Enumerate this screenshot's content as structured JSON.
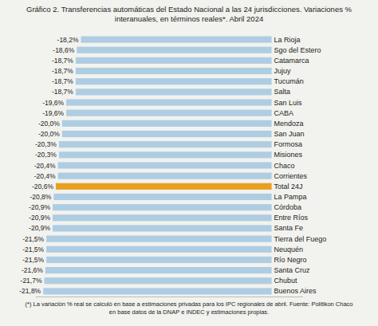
{
  "chart_data": {
    "type": "bar",
    "orientation": "horizontal",
    "title": "Gráfico 2. Transferencias automáticas del Estado Nacional a las 24 jurisdicciones. Variaciones %\ninteranuales, en términos reales*. Abril 2024",
    "annotations": [
      "(*) La variación % real se calculó en base a estimaciones privadas para los IPC regionales de abril. Fuente: Politikon Chaco\nen base datos de la DNAP e INDEC y estimaciones propias."
    ],
    "categories": [
      "La Rioja",
      "Sgo del Estero",
      "Catamarca",
      "Jujuy",
      "Tucumán",
      "Salta",
      "San Luis",
      "CABA",
      "Mendoza",
      "San Juan",
      "Formosa",
      "Misiones",
      "Chaco",
      "Corrientes",
      "Total 24J",
      "La Pampa",
      "Córdoba",
      "Entre Ríos",
      "Santa Fe",
      "Tierra del Fuego",
      "Neuquén",
      "Río Negro",
      "Santa Cruz",
      "Chubut",
      "Buenos Aires"
    ],
    "values": [
      -18.2,
      -18.6,
      -18.7,
      -18.7,
      -18.7,
      -18.7,
      -19.6,
      -19.6,
      -20.0,
      -20.0,
      -20.3,
      -20.3,
      -20.4,
      -20.4,
      -20.6,
      -20.8,
      -20.9,
      -20.9,
      -20.9,
      -21.5,
      -21.5,
      -21.5,
      -21.6,
      -21.7,
      -21.8
    ],
    "value_labels": [
      "-18,2%",
      "-18,6%",
      "-18,7%",
      "-18,7%",
      "-18,7%",
      "-18,7%",
      "-19,6%",
      "-19,6%",
      "-20,0%",
      "-20,0%",
      "-20,3%",
      "-20,3%",
      "-20,4%",
      "-20,4%",
      "-20,6%",
      "-20,8%",
      "-20,9%",
      "-20,9%",
      "-20,9%",
      "-21,5%",
      "-21,5%",
      "-21,5%",
      "-21,6%",
      "-21,7%",
      "-21,8%"
    ],
    "colors": [
      "#aecde3",
      "#aecde3",
      "#aecde3",
      "#aecde3",
      "#aecde3",
      "#aecde3",
      "#aecde3",
      "#aecde3",
      "#aecde3",
      "#aecde3",
      "#aecde3",
      "#aecde3",
      "#aecde3",
      "#aecde3",
      "#e8a020",
      "#aecde3",
      "#aecde3",
      "#aecde3",
      "#aecde3",
      "#aecde3",
      "#aecde3",
      "#aecde3",
      "#aecde3",
      "#aecde3",
      "#aecde3"
    ],
    "xlim": [
      -22.5,
      3.0
    ],
    "data_labels": true,
    "tick_labels": false,
    "grid": false
  }
}
